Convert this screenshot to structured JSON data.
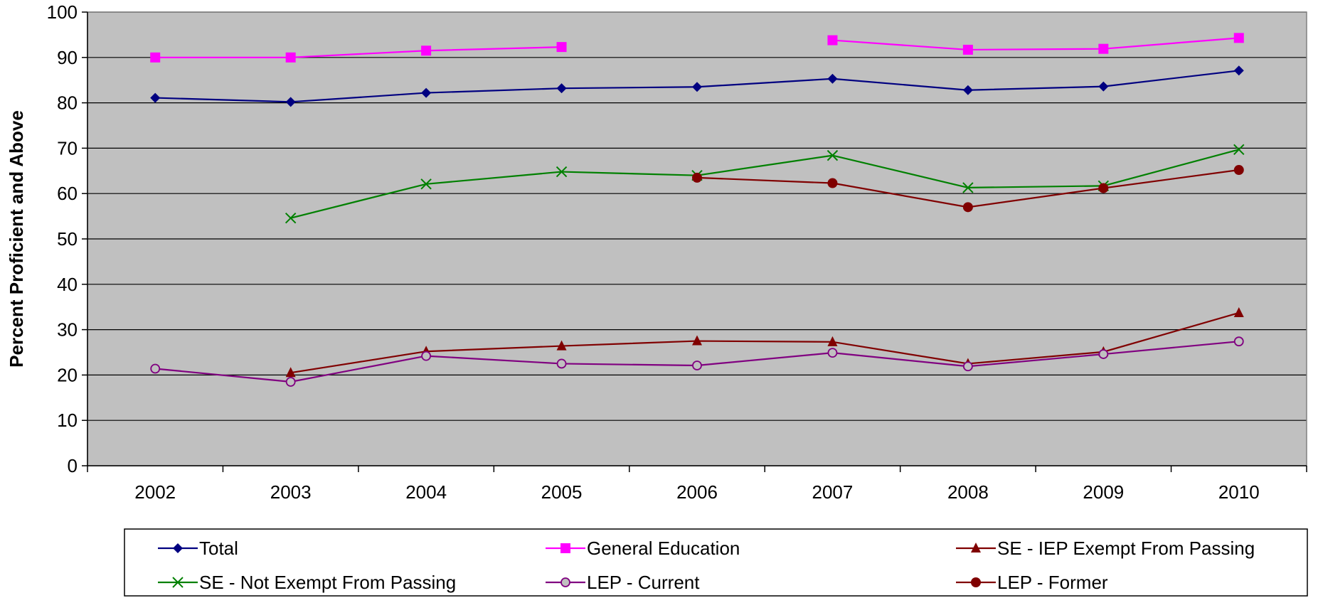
{
  "chart_data": {
    "type": "line",
    "title": "",
    "xlabel": "",
    "ylabel": "Percent Proficient and Above",
    "ylim": [
      0,
      100
    ],
    "yticks": [
      0,
      10,
      20,
      30,
      40,
      50,
      60,
      70,
      80,
      90,
      100
    ],
    "categories": [
      "2002",
      "2003",
      "2004",
      "2005",
      "2006",
      "2007",
      "2008",
      "2009",
      "2010"
    ],
    "grid": "horizontal",
    "plot_background": "#C0C0C0",
    "legend_position": "bottom",
    "series": [
      {
        "name": "Total",
        "color": "#000080",
        "marker": "diamond",
        "values": [
          81.1,
          80.2,
          82.2,
          83.2,
          83.5,
          85.3,
          82.8,
          83.6,
          87.1
        ]
      },
      {
        "name": "General Education",
        "color": "#FF00FF",
        "marker": "square",
        "values": [
          90.0,
          90.0,
          91.5,
          92.3,
          null,
          93.8,
          91.7,
          91.9,
          94.3
        ]
      },
      {
        "name": "SE - IEP Exempt From Passing",
        "color": "#800000",
        "marker": "triangle",
        "values": [
          null,
          20.5,
          25.2,
          26.4,
          27.5,
          27.3,
          22.5,
          25.1,
          33.7
        ]
      },
      {
        "name": "SE - Not Exempt From Passing",
        "color": "#008000",
        "marker": "x",
        "values": [
          null,
          54.6,
          62.1,
          64.8,
          64.0,
          68.4,
          61.3,
          61.7,
          69.7
        ]
      },
      {
        "name": "LEP - Current",
        "color": "#800080",
        "marker": "circle-open",
        "values": [
          21.4,
          18.5,
          24.2,
          22.5,
          22.1,
          24.9,
          21.9,
          24.6,
          27.4
        ]
      },
      {
        "name": "LEP - Former",
        "color": "#800000",
        "marker": "circle",
        "values": [
          null,
          null,
          null,
          null,
          63.5,
          62.3,
          57.0,
          61.2,
          65.2
        ]
      }
    ]
  }
}
